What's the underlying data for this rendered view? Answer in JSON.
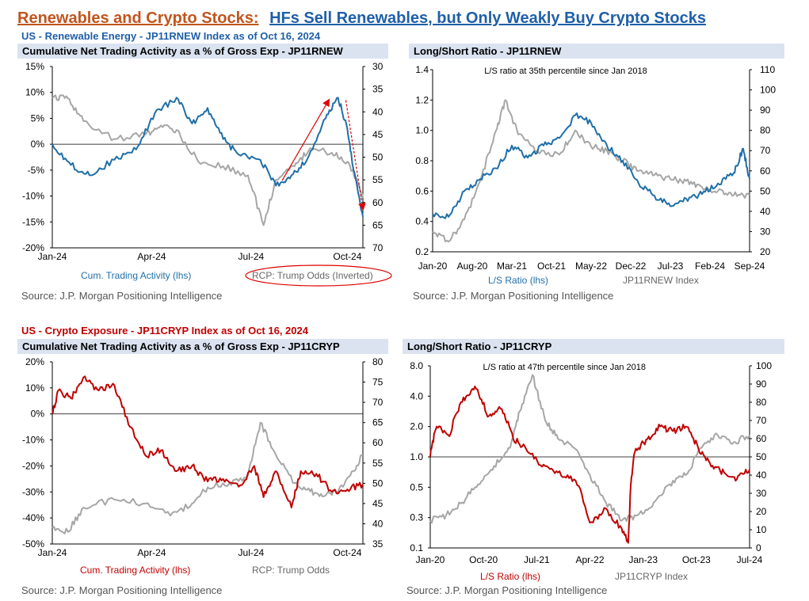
{
  "page": {
    "title_a": "Renewables and Crypto Stocks:",
    "title_b": "HFs Sell Renewables, but Only Weakly Buy Crypto Stocks",
    "sec_top": "US - Renewable Energy - JP11RNEW Index as of Oct 16, 2024",
    "sec_bottom": "US - Crypto Exposure - JP11CRYP Index as of Oct 16, 2024",
    "colors": {
      "blue": "#1f6fa8",
      "red": "#c00000",
      "gray": "#a6a6a6",
      "title_orange": "#c0551e",
      "title_blue": "#1f5fa8"
    }
  },
  "chart_data": [
    {
      "id": "c1",
      "type": "line",
      "title": "Cumulative Net Trading Activity as a % of Gross Exp - JP11RNEW",
      "xlabels": [
        "Jan-24",
        "Apr-24",
        "Jul-24",
        "Oct-24"
      ],
      "left_ticks": [
        "15%",
        "10%",
        "5%",
        "0%",
        "-5%",
        "-10%",
        "-15%",
        "-20%"
      ],
      "right_ticks": [
        "30",
        "35",
        "40",
        "45",
        "50",
        "55",
        "60",
        "65",
        "70"
      ],
      "ylim_left": [
        -20,
        15
      ],
      "ylim_right_inverted": [
        30,
        70
      ],
      "zero_line": 0,
      "legend_primary": "Cum. Trading Activity (lhs)",
      "legend_secondary": "RCP: Trump Odds (Inverted)",
      "source": "Source: J.P. Morgan Positioning Intelligence",
      "series": [
        {
          "name": "Cum. Trading Activity (lhs)",
          "axis": "left",
          "color": "blue",
          "points": [
            [
              0,
              0
            ],
            [
              0.06,
              -4
            ],
            [
              0.12,
              -6
            ],
            [
              0.2,
              -3
            ],
            [
              0.27,
              -1
            ],
            [
              0.33,
              6
            ],
            [
              0.4,
              9
            ],
            [
              0.45,
              4
            ],
            [
              0.5,
              7
            ],
            [
              0.55,
              1
            ],
            [
              0.6,
              -2
            ],
            [
              0.67,
              -3
            ],
            [
              0.72,
              -8
            ],
            [
              0.77,
              -6
            ],
            [
              0.82,
              -3
            ],
            [
              0.88,
              5
            ],
            [
              0.92,
              9
            ],
            [
              0.95,
              3
            ],
            [
              0.97,
              -5
            ],
            [
              1.0,
              -14
            ]
          ]
        },
        {
          "name": "RCP: Trump Odds (Inverted)",
          "axis": "right",
          "color": "gray",
          "points": [
            [
              0,
              37
            ],
            [
              0.05,
              37
            ],
            [
              0.1,
              42
            ],
            [
              0.2,
              46
            ],
            [
              0.3,
              45
            ],
            [
              0.35,
              43
            ],
            [
              0.4,
              44
            ],
            [
              0.47,
              51
            ],
            [
              0.55,
              52
            ],
            [
              0.63,
              54
            ],
            [
              0.68,
              65
            ],
            [
              0.72,
              55
            ],
            [
              0.78,
              52
            ],
            [
              0.83,
              48
            ],
            [
              0.9,
              49
            ],
            [
              0.95,
              51
            ],
            [
              0.98,
              55
            ],
            [
              1.0,
              59
            ]
          ]
        }
      ],
      "annotation": "red arrows: rise then fall of Trump odds"
    },
    {
      "id": "c2",
      "type": "line",
      "title": "Long/Short Ratio - JP11RNEW",
      "xlabels": [
        "Jan-20",
        "Aug-20",
        "Mar-21",
        "Oct-21",
        "May-22",
        "Dec-22",
        "Jul-23",
        "Feb-24",
        "Sep-24"
      ],
      "left_ticks": [
        "1.4",
        "1.2",
        "1.0",
        "0.8",
        "0.6",
        "0.4",
        "0.2"
      ],
      "right_ticks": [
        "110",
        "100",
        "90",
        "80",
        "70",
        "60",
        "50",
        "40",
        "30",
        "20"
      ],
      "ylim_left": [
        0.2,
        1.4
      ],
      "ylim_right": [
        20,
        110
      ],
      "annotation": "L/S ratio at 35th percentile since Jan 2018",
      "legend_primary": "L/S Ratio (lhs)",
      "legend_secondary": "JP11RNEW Index",
      "source": "Source: J.P. Morgan Positioning Intelligence",
      "series": [
        {
          "name": "L/S Ratio (lhs)",
          "axis": "left",
          "color": "blue",
          "points": [
            [
              0,
              0.45
            ],
            [
              0.05,
              0.43
            ],
            [
              0.1,
              0.6
            ],
            [
              0.15,
              0.68
            ],
            [
              0.2,
              0.75
            ],
            [
              0.25,
              0.9
            ],
            [
              0.3,
              0.82
            ],
            [
              0.35,
              0.9
            ],
            [
              0.4,
              0.95
            ],
            [
              0.45,
              1.1
            ],
            [
              0.5,
              1.05
            ],
            [
              0.55,
              0.9
            ],
            [
              0.6,
              0.8
            ],
            [
              0.65,
              0.65
            ],
            [
              0.7,
              0.57
            ],
            [
              0.75,
              0.5
            ],
            [
              0.8,
              0.55
            ],
            [
              0.85,
              0.58
            ],
            [
              0.9,
              0.65
            ],
            [
              0.95,
              0.72
            ],
            [
              0.98,
              0.88
            ],
            [
              1.0,
              0.68
            ]
          ]
        },
        {
          "name": "JP11RNEW Index",
          "axis": "right",
          "color": "gray",
          "points": [
            [
              0,
              30
            ],
            [
              0.05,
              25
            ],
            [
              0.1,
              36
            ],
            [
              0.15,
              55
            ],
            [
              0.2,
              80
            ],
            [
              0.23,
              95
            ],
            [
              0.27,
              78
            ],
            [
              0.33,
              70
            ],
            [
              0.4,
              68
            ],
            [
              0.45,
              80
            ],
            [
              0.5,
              72
            ],
            [
              0.55,
              70
            ],
            [
              0.6,
              65
            ],
            [
              0.65,
              60
            ],
            [
              0.7,
              58
            ],
            [
              0.75,
              56
            ],
            [
              0.8,
              55
            ],
            [
              0.85,
              52
            ],
            [
              0.9,
              50
            ],
            [
              0.95,
              48
            ],
            [
              1.0,
              48
            ]
          ]
        }
      ]
    },
    {
      "id": "c3",
      "type": "line",
      "title": "Cumulative Net Trading Activity as a % of Gross Exp - JP11CRYP",
      "xlabels": [
        "Jan-24",
        "Apr-24",
        "Jul-24",
        "Oct-24"
      ],
      "left_ticks": [
        "20%",
        "10%",
        "0%",
        "-10%",
        "-20%",
        "-30%",
        "-40%",
        "-50%"
      ],
      "right_ticks": [
        "80",
        "75",
        "70",
        "65",
        "60",
        "55",
        "50",
        "45",
        "40",
        "35"
      ],
      "ylim_left": [
        -50,
        20
      ],
      "ylim_right": [
        35,
        80
      ],
      "zero_line": 0,
      "legend_primary": "Cum. Trading Activity (lhs)",
      "legend_secondary": "RCP: Trump Odds",
      "source": "Source: J.P. Morgan Positioning Intelligence",
      "series": [
        {
          "name": "Cum. Trading Activity (lhs)",
          "axis": "left",
          "color": "red",
          "points": [
            [
              0,
              0
            ],
            [
              0.02,
              9
            ],
            [
              0.06,
              6
            ],
            [
              0.1,
              14
            ],
            [
              0.15,
              9
            ],
            [
              0.2,
              11
            ],
            [
              0.25,
              -5
            ],
            [
              0.3,
              -16
            ],
            [
              0.35,
              -14
            ],
            [
              0.4,
              -22
            ],
            [
              0.45,
              -20
            ],
            [
              0.5,
              -26
            ],
            [
              0.55,
              -25
            ],
            [
              0.6,
              -28
            ],
            [
              0.65,
              -20
            ],
            [
              0.68,
              -32
            ],
            [
              0.72,
              -22
            ],
            [
              0.77,
              -36
            ],
            [
              0.8,
              -22
            ],
            [
              0.85,
              -23
            ],
            [
              0.9,
              -30
            ],
            [
              0.95,
              -29
            ],
            [
              1.0,
              -27
            ]
          ]
        },
        {
          "name": "RCP: Trump Odds",
          "axis": "right",
          "color": "gray",
          "points": [
            [
              0,
              39
            ],
            [
              0.05,
              38
            ],
            [
              0.1,
              44
            ],
            [
              0.2,
              46
            ],
            [
              0.3,
              45
            ],
            [
              0.38,
              42
            ],
            [
              0.45,
              45
            ],
            [
              0.5,
              49
            ],
            [
              0.57,
              50
            ],
            [
              0.63,
              52
            ],
            [
              0.67,
              65
            ],
            [
              0.72,
              57
            ],
            [
              0.78,
              50
            ],
            [
              0.83,
              48
            ],
            [
              0.88,
              47
            ],
            [
              0.92,
              48
            ],
            [
              0.96,
              52
            ],
            [
              1.0,
              57
            ]
          ]
        }
      ]
    },
    {
      "id": "c4",
      "type": "line",
      "title": "Long/Short Ratio - JP11CRYP",
      "xlabels": [
        "Jan-20",
        "Oct-20",
        "Jul-21",
        "Apr-22",
        "Jan-23",
        "Oct-23",
        "Jul-24"
      ],
      "left_ticks": [
        "8.0",
        "4.0",
        "2.0",
        "1.0",
        "0.5",
        "0.3",
        "0.1"
      ],
      "right_ticks": [
        "100",
        "90",
        "80",
        "70",
        "60",
        "50",
        "40",
        "30",
        "20",
        "10",
        "0"
      ],
      "ylim_right": [
        0,
        100
      ],
      "annotation": "L/S ratio at 47th percentile since Jan 2018",
      "legend_primary": "L/S Ratio (lhs)",
      "legend_secondary": "JP11CRYP Index",
      "source": "Source: J.P. Morgan Positioning Intelligence",
      "series": [
        {
          "name": "L/S Ratio (lhs)",
          "axis": "left_log",
          "color": "red",
          "points": [
            [
              0,
              1.0
            ],
            [
              0.02,
              2.0
            ],
            [
              0.06,
              1.6
            ],
            [
              0.1,
              3.5
            ],
            [
              0.14,
              5.0
            ],
            [
              0.18,
              2.5
            ],
            [
              0.22,
              3.0
            ],
            [
              0.26,
              1.5
            ],
            [
              0.3,
              1.2
            ],
            [
              0.35,
              0.8
            ],
            [
              0.4,
              0.7
            ],
            [
              0.45,
              0.6
            ],
            [
              0.5,
              0.25
            ],
            [
              0.55,
              0.35
            ],
            [
              0.6,
              0.2
            ],
            [
              0.62,
              0.12
            ],
            [
              0.64,
              1.1
            ],
            [
              0.68,
              1.5
            ],
            [
              0.72,
              2.0
            ],
            [
              0.76,
              1.8
            ],
            [
              0.8,
              2.0
            ],
            [
              0.84,
              1.2
            ],
            [
              0.88,
              0.8
            ],
            [
              0.92,
              0.7
            ],
            [
              0.96,
              0.6
            ],
            [
              1.0,
              0.75
            ]
          ]
        },
        {
          "name": "JP11CRYP Index",
          "axis": "right",
          "color": "gray",
          "points": [
            [
              0,
              15
            ],
            [
              0.05,
              18
            ],
            [
              0.1,
              25
            ],
            [
              0.15,
              35
            ],
            [
              0.2,
              45
            ],
            [
              0.25,
              55
            ],
            [
              0.28,
              75
            ],
            [
              0.32,
              95
            ],
            [
              0.36,
              70
            ],
            [
              0.4,
              60
            ],
            [
              0.45,
              55
            ],
            [
              0.5,
              40
            ],
            [
              0.55,
              25
            ],
            [
              0.6,
              15
            ],
            [
              0.65,
              18
            ],
            [
              0.7,
              25
            ],
            [
              0.75,
              35
            ],
            [
              0.8,
              40
            ],
            [
              0.85,
              55
            ],
            [
              0.9,
              62
            ],
            [
              0.95,
              58
            ],
            [
              1.0,
              62
            ]
          ]
        }
      ]
    }
  ]
}
